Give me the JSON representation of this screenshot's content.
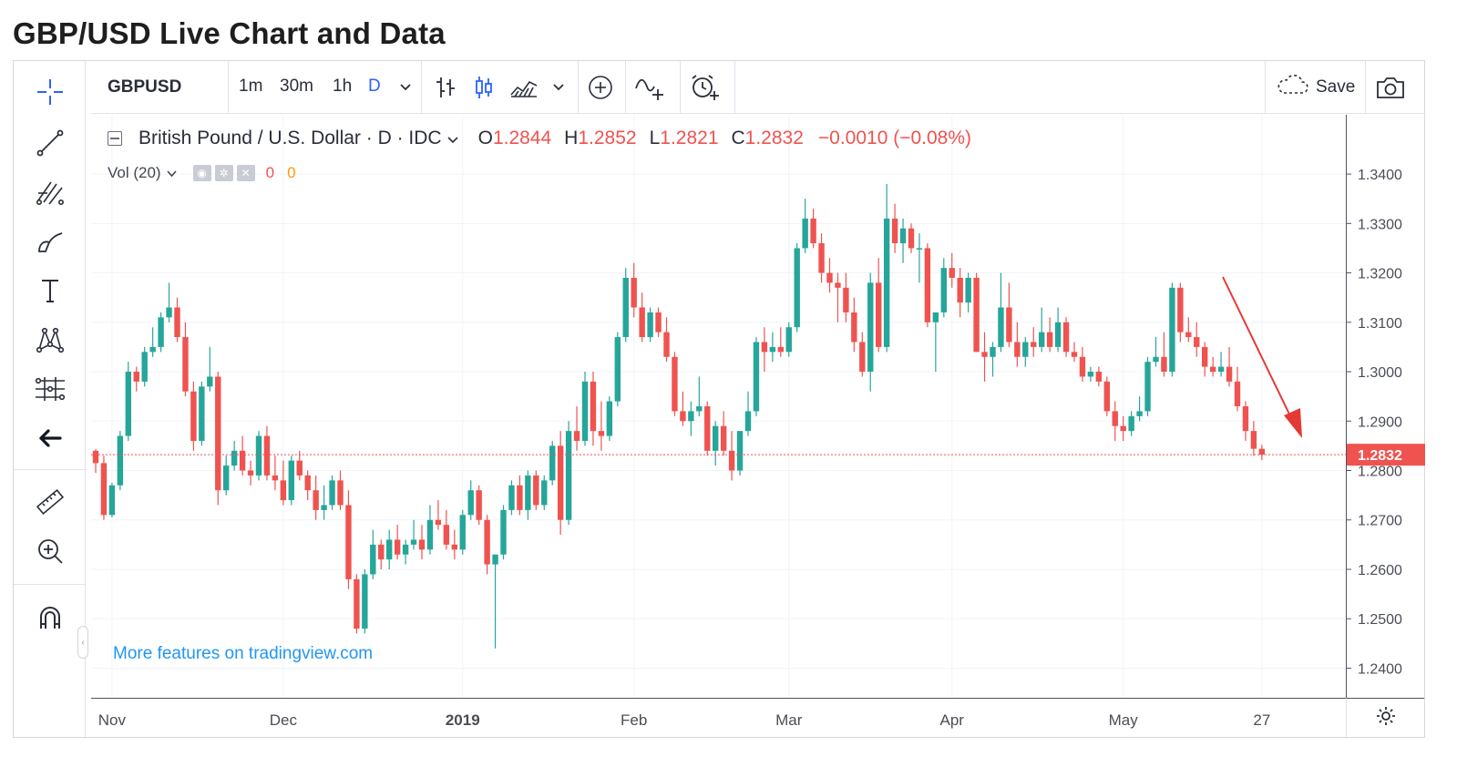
{
  "page_title": "GBP/USD Live Chart and Data",
  "toolbar": {
    "symbol": "GBPUSD",
    "intervals": [
      "1m",
      "30m",
      "1h",
      "D"
    ],
    "active_interval": "D",
    "save_label": "Save",
    "icons": [
      "chevron-down-icon",
      "bars-icon",
      "candles-icon",
      "area-icon",
      "chevron-down-icon",
      "add-compare-icon",
      "indicators-icon",
      "alert-icon",
      "cloud-icon",
      "camera-icon"
    ]
  },
  "left_tools": [
    "crosshair-icon",
    "trend-line-icon",
    "fib-icon",
    "brush-icon",
    "text-icon",
    "pattern-icon",
    "prediction-icon",
    "back-arrow-icon",
    "ruler-icon",
    "zoom-in-icon",
    "magnet-icon"
  ],
  "legend": {
    "instrument": "British Pound / U.S. Dollar · D · IDC",
    "o_label": "O",
    "o": "1.2844",
    "h_label": "H",
    "h": "1.2852",
    "l_label": "L",
    "l": "1.2821",
    "c_label": "C",
    "c": "1.2832",
    "change": "−0.0010 (−0.08%)"
  },
  "volume": {
    "label": "Vol (20)",
    "value1": "0",
    "value2": "0"
  },
  "promo": "More features on tradingview.com",
  "colors": {
    "up": "#26a69a",
    "down": "#ef5350",
    "accent": "#2962ff",
    "link": "#2196f3",
    "arrow": "#e53935"
  },
  "chart_data": {
    "type": "candlestick",
    "title": "",
    "xlabel": "",
    "ylabel": "",
    "ylim": [
      1.234,
      1.352
    ],
    "y_ticks": [
      1.34,
      1.33,
      1.32,
      1.31,
      1.3,
      1.29,
      1.28,
      1.27,
      1.26,
      1.25,
      1.24
    ],
    "y_tick_labels": [
      "1.3400",
      "1.3300",
      "1.3200",
      "1.3100",
      "1.3000",
      "1.2900",
      "1.2800",
      "1.2700",
      "1.2600",
      "1.2500",
      "1.2400"
    ],
    "x_tick_labels": [
      "Nov",
      "Dec",
      "2019",
      "Feb",
      "Mar",
      "Apr",
      "May",
      "27"
    ],
    "x_tick_index": [
      2,
      23,
      45,
      66,
      85,
      105,
      126,
      143
    ],
    "last_price": 1.2832,
    "last_price_label": "1.2832",
    "grid": true,
    "annotation": "down-arrow",
    "ohlc": [
      [
        1.284,
        1.2843,
        1.2795,
        1.2815
      ],
      [
        1.2815,
        1.283,
        1.27,
        1.271
      ],
      [
        1.271,
        1.2775,
        1.2705,
        1.277
      ],
      [
        1.277,
        1.288,
        1.276,
        1.287
      ],
      [
        1.287,
        1.302,
        1.286,
        1.3
      ],
      [
        1.3,
        1.301,
        1.296,
        1.298
      ],
      [
        1.298,
        1.305,
        1.297,
        1.304
      ],
      [
        1.304,
        1.309,
        1.303,
        1.305
      ],
      [
        1.305,
        1.312,
        1.304,
        1.311
      ],
      [
        1.311,
        1.318,
        1.31,
        1.313
      ],
      [
        1.313,
        1.315,
        1.306,
        1.307
      ],
      [
        1.307,
        1.31,
        1.295,
        1.296
      ],
      [
        1.296,
        1.298,
        1.284,
        1.286
      ],
      [
        1.286,
        1.298,
        1.285,
        1.297
      ],
      [
        1.297,
        1.305,
        1.296,
        1.299
      ],
      [
        1.299,
        1.3,
        1.273,
        1.276
      ],
      [
        1.276,
        1.283,
        1.275,
        1.281
      ],
      [
        1.281,
        1.286,
        1.28,
        1.284
      ],
      [
        1.284,
        1.287,
        1.279,
        1.28
      ],
      [
        1.28,
        1.282,
        1.277,
        1.279
      ],
      [
        1.279,
        1.288,
        1.278,
        1.287
      ],
      [
        1.287,
        1.289,
        1.278,
        1.279
      ],
      [
        1.279,
        1.283,
        1.276,
        1.278
      ],
      [
        1.278,
        1.282,
        1.273,
        1.274
      ],
      [
        1.274,
        1.283,
        1.273,
        1.282
      ],
      [
        1.282,
        1.284,
        1.278,
        1.279
      ],
      [
        1.279,
        1.28,
        1.274,
        1.276
      ],
      [
        1.276,
        1.279,
        1.27,
        1.272
      ],
      [
        1.272,
        1.277,
        1.27,
        1.273
      ],
      [
        1.273,
        1.279,
        1.272,
        1.278
      ],
      [
        1.278,
        1.28,
        1.272,
        1.273
      ],
      [
        1.273,
        1.276,
        1.256,
        1.258
      ],
      [
        1.258,
        1.259,
        1.247,
        1.248
      ],
      [
        1.248,
        1.26,
        1.247,
        1.259
      ],
      [
        1.259,
        1.268,
        1.258,
        1.265
      ],
      [
        1.265,
        1.266,
        1.26,
        1.262
      ],
      [
        1.262,
        1.268,
        1.26,
        1.266
      ],
      [
        1.266,
        1.269,
        1.262,
        1.263
      ],
      [
        1.263,
        1.266,
        1.261,
        1.265
      ],
      [
        1.265,
        1.27,
        1.264,
        1.266
      ],
      [
        1.266,
        1.269,
        1.262,
        1.264
      ],
      [
        1.264,
        1.273,
        1.263,
        1.27
      ],
      [
        1.27,
        1.274,
        1.268,
        1.269
      ],
      [
        1.269,
        1.272,
        1.264,
        1.265
      ],
      [
        1.265,
        1.268,
        1.262,
        1.264
      ],
      [
        1.264,
        1.272,
        1.263,
        1.271
      ],
      [
        1.271,
        1.278,
        1.27,
        1.276
      ],
      [
        1.276,
        1.277,
        1.269,
        1.27
      ],
      [
        1.27,
        1.271,
        1.259,
        1.261
      ],
      [
        1.261,
        1.262,
        1.244,
        1.263
      ],
      [
        1.263,
        1.273,
        1.262,
        1.272
      ],
      [
        1.272,
        1.278,
        1.271,
        1.277
      ],
      [
        1.277,
        1.279,
        1.271,
        1.272
      ],
      [
        1.272,
        1.28,
        1.27,
        1.279
      ],
      [
        1.279,
        1.28,
        1.272,
        1.273
      ],
      [
        1.273,
        1.279,
        1.272,
        1.278
      ],
      [
        1.278,
        1.286,
        1.277,
        1.285
      ],
      [
        1.285,
        1.288,
        1.267,
        1.27
      ],
      [
        1.27,
        1.29,
        1.269,
        1.288
      ],
      [
        1.288,
        1.293,
        1.284,
        1.286
      ],
      [
        1.286,
        1.3,
        1.285,
        1.298
      ],
      [
        1.298,
        1.3,
        1.285,
        1.288
      ],
      [
        1.288,
        1.294,
        1.284,
        1.287
      ],
      [
        1.287,
        1.295,
        1.286,
        1.294
      ],
      [
        1.294,
        1.308,
        1.293,
        1.307
      ],
      [
        1.307,
        1.321,
        1.306,
        1.319
      ],
      [
        1.319,
        1.322,
        1.311,
        1.313
      ],
      [
        1.313,
        1.316,
        1.306,
        1.307
      ],
      [
        1.307,
        1.313,
        1.306,
        1.312
      ],
      [
        1.312,
        1.313,
        1.307,
        1.308
      ],
      [
        1.308,
        1.311,
        1.302,
        1.303
      ],
      [
        1.303,
        1.304,
        1.291,
        1.292
      ],
      [
        1.292,
        1.296,
        1.289,
        1.29
      ],
      [
        1.29,
        1.294,
        1.287,
        1.292
      ],
      [
        1.292,
        1.299,
        1.291,
        1.293
      ],
      [
        1.293,
        1.294,
        1.283,
        1.284
      ],
      [
        1.284,
        1.29,
        1.281,
        1.289
      ],
      [
        1.289,
        1.292,
        1.283,
        1.284
      ],
      [
        1.284,
        1.288,
        1.278,
        1.28
      ],
      [
        1.28,
        1.288,
        1.279,
        1.288
      ],
      [
        1.288,
        1.296,
        1.287,
        1.292
      ],
      [
        1.292,
        1.307,
        1.291,
        1.306
      ],
      [
        1.306,
        1.309,
        1.3,
        1.304
      ],
      [
        1.304,
        1.308,
        1.302,
        1.305
      ],
      [
        1.305,
        1.309,
        1.303,
        1.304
      ],
      [
        1.304,
        1.31,
        1.303,
        1.309
      ],
      [
        1.309,
        1.326,
        1.308,
        1.325
      ],
      [
        1.325,
        1.335,
        1.324,
        1.331
      ],
      [
        1.331,
        1.333,
        1.325,
        1.326
      ],
      [
        1.326,
        1.328,
        1.318,
        1.32
      ],
      [
        1.32,
        1.323,
        1.316,
        1.318
      ],
      [
        1.318,
        1.32,
        1.31,
        1.317
      ],
      [
        1.317,
        1.32,
        1.31,
        1.312
      ],
      [
        1.312,
        1.315,
        1.304,
        1.306
      ],
      [
        1.306,
        1.308,
        1.299,
        1.3
      ],
      [
        1.3,
        1.32,
        1.296,
        1.318
      ],
      [
        1.318,
        1.323,
        1.304,
        1.305
      ],
      [
        1.305,
        1.338,
        1.304,
        1.331
      ],
      [
        1.331,
        1.334,
        1.324,
        1.326
      ],
      [
        1.326,
        1.331,
        1.322,
        1.329
      ],
      [
        1.329,
        1.33,
        1.324,
        1.325
      ],
      [
        1.325,
        1.328,
        1.318,
        1.325
      ],
      [
        1.325,
        1.326,
        1.309,
        1.31
      ],
      [
        1.31,
        1.311,
        1.3,
        1.312
      ],
      [
        1.312,
        1.323,
        1.311,
        1.321
      ],
      [
        1.321,
        1.324,
        1.317,
        1.319
      ],
      [
        1.319,
        1.321,
        1.311,
        1.314
      ],
      [
        1.314,
        1.32,
        1.312,
        1.319
      ],
      [
        1.319,
        1.32,
        1.304,
        1.304
      ],
      [
        1.304,
        1.308,
        1.298,
        1.303
      ],
      [
        1.303,
        1.306,
        1.299,
        1.305
      ],
      [
        1.305,
        1.32,
        1.304,
        1.313
      ],
      [
        1.313,
        1.318,
        1.305,
        1.306
      ],
      [
        1.306,
        1.31,
        1.301,
        1.303
      ],
      [
        1.303,
        1.307,
        1.301,
        1.306
      ],
      [
        1.306,
        1.309,
        1.303,
        1.305
      ],
      [
        1.305,
        1.313,
        1.304,
        1.308
      ],
      [
        1.308,
        1.311,
        1.304,
        1.305
      ],
      [
        1.305,
        1.313,
        1.304,
        1.31
      ],
      [
        1.31,
        1.311,
        1.303,
        1.304
      ],
      [
        1.304,
        1.306,
        1.302,
        1.303
      ],
      [
        1.303,
        1.305,
        1.298,
        1.299
      ],
      [
        1.299,
        1.301,
        1.298,
        1.3
      ],
      [
        1.3,
        1.301,
        1.297,
        1.298
      ],
      [
        1.298,
        1.299,
        1.291,
        1.292
      ],
      [
        1.292,
        1.294,
        1.286,
        1.289
      ],
      [
        1.289,
        1.291,
        1.286,
        1.288
      ],
      [
        1.288,
        1.292,
        1.287,
        1.291
      ],
      [
        1.291,
        1.295,
        1.29,
        1.292
      ],
      [
        1.292,
        1.303,
        1.291,
        1.302
      ],
      [
        1.302,
        1.307,
        1.301,
        1.303
      ],
      [
        1.303,
        1.308,
        1.299,
        1.3
      ],
      [
        1.3,
        1.318,
        1.299,
        1.317
      ],
      [
        1.317,
        1.318,
        1.306,
        1.308
      ],
      [
        1.308,
        1.311,
        1.306,
        1.307
      ],
      [
        1.307,
        1.31,
        1.303,
        1.305
      ],
      [
        1.305,
        1.306,
        1.299,
        1.301
      ],
      [
        1.301,
        1.303,
        1.299,
        1.3
      ],
      [
        1.3,
        1.304,
        1.299,
        1.301
      ],
      [
        1.301,
        1.305,
        1.297,
        1.298
      ],
      [
        1.298,
        1.301,
        1.292,
        1.293
      ],
      [
        1.293,
        1.294,
        1.286,
        1.288
      ],
      [
        1.288,
        1.29,
        1.283,
        1.2844
      ],
      [
        1.2844,
        1.2852,
        1.2821,
        1.2832
      ]
    ]
  }
}
